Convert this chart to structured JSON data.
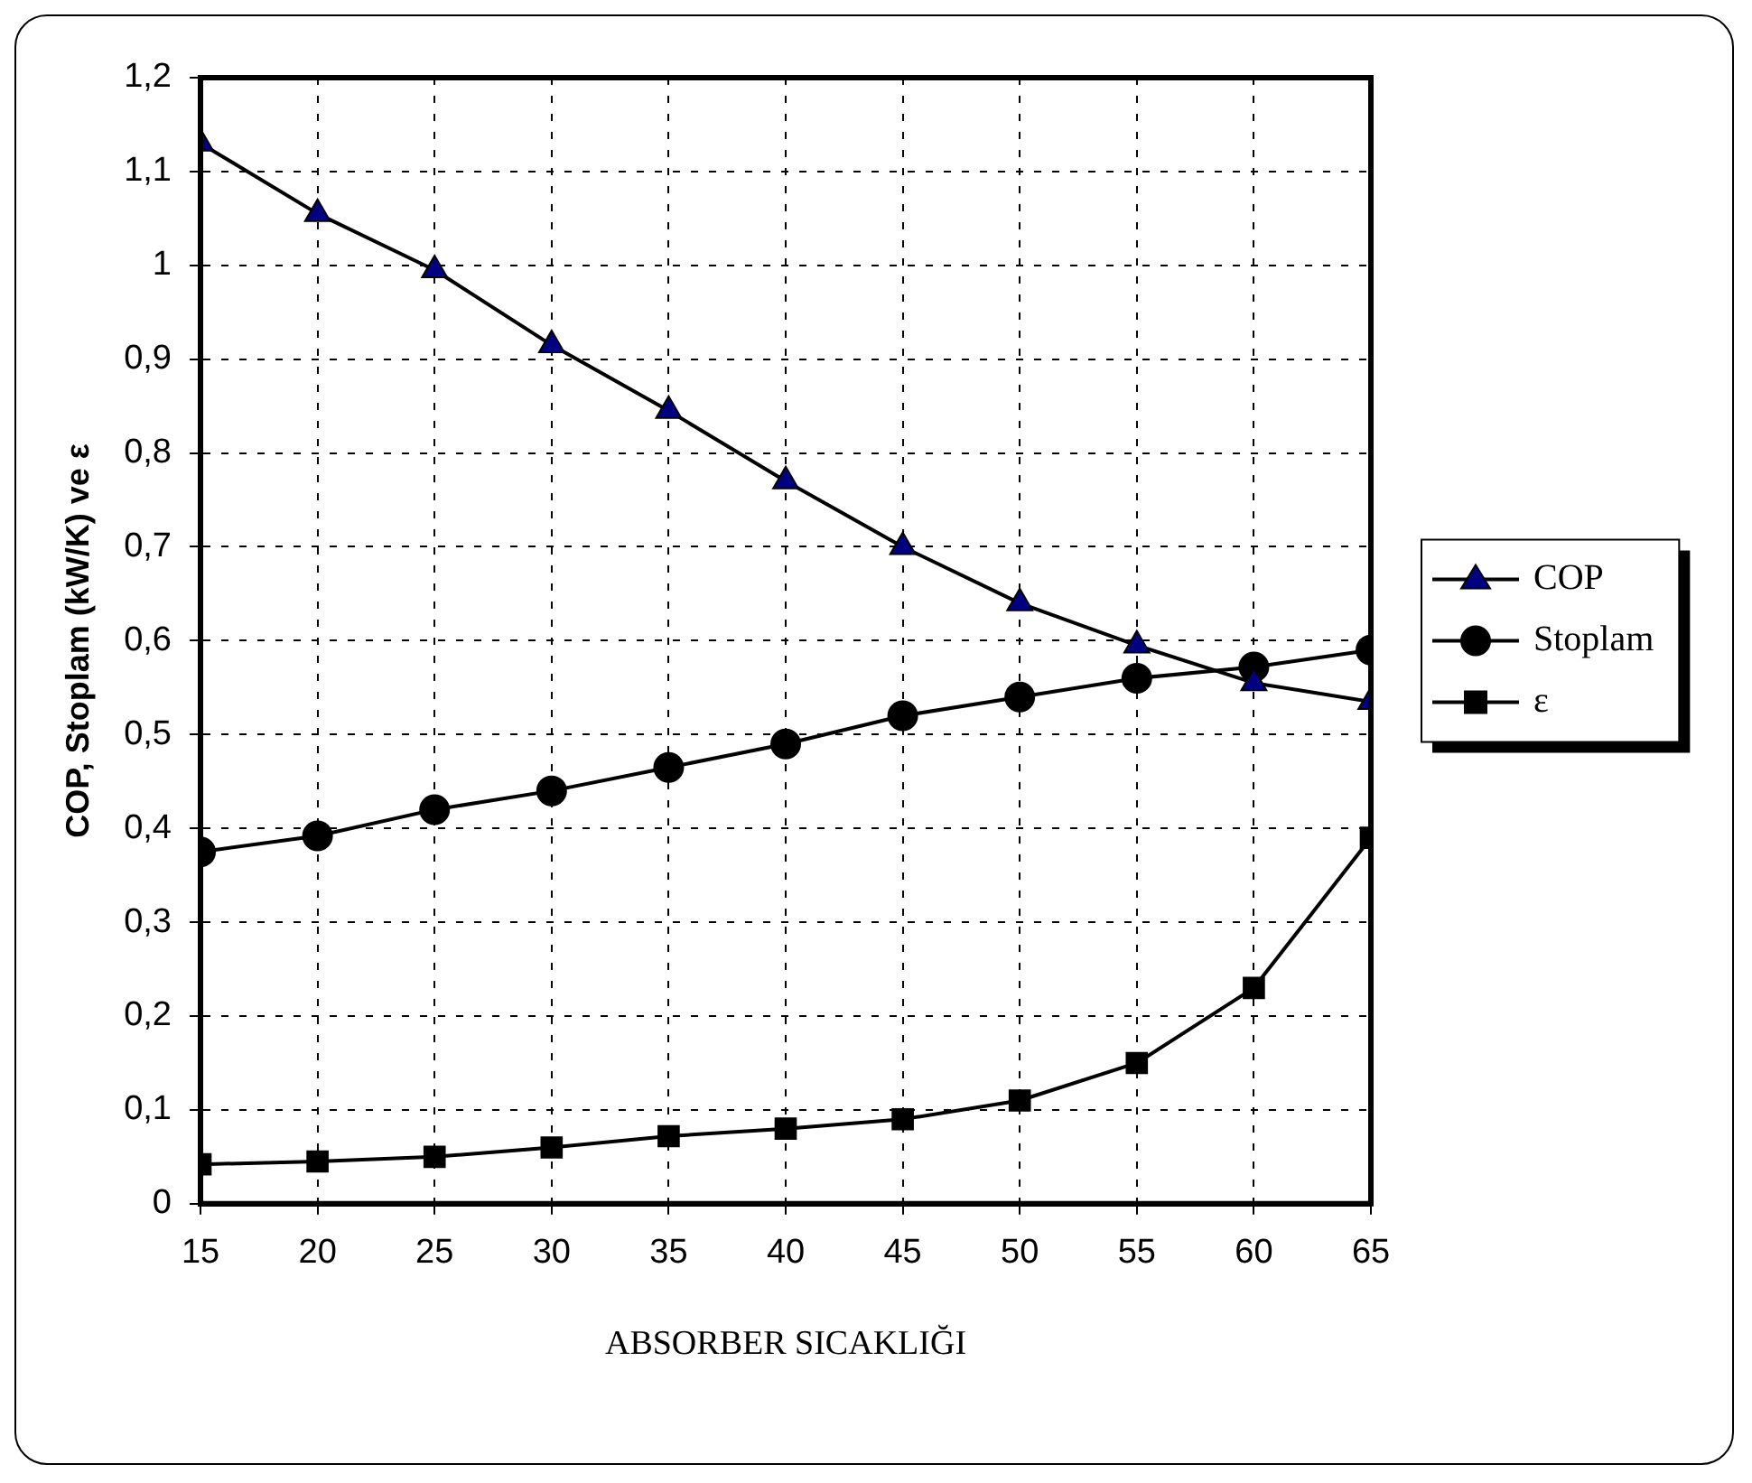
{
  "chart_data": {
    "type": "line",
    "xlabel": "ABSORBER SICAKLIĞI",
    "ylabel": "COP, Stoplam (kW/K) ve ε",
    "x": [
      15,
      20,
      25,
      30,
      35,
      40,
      45,
      50,
      55,
      60,
      65
    ],
    "xlim": [
      15,
      65
    ],
    "xticks": [
      15,
      20,
      25,
      30,
      35,
      40,
      45,
      50,
      55,
      60,
      65
    ],
    "ylim": [
      0,
      1.2
    ],
    "yticks": [
      0,
      {
        "value": 0.1,
        "label": "0,1"
      },
      {
        "value": 0.2,
        "label": "0,2"
      },
      {
        "value": 0.3,
        "label": "0,3"
      },
      {
        "value": 0.4,
        "label": "0,4"
      },
      {
        "value": 0.5,
        "label": "0,5"
      },
      {
        "value": 0.6,
        "label": "0,6"
      },
      {
        "value": 0.7,
        "label": "0,7"
      },
      {
        "value": 0.8,
        "label": "0,8"
      },
      {
        "value": 0.9,
        "label": "0,9"
      },
      1,
      {
        "value": 1.1,
        "label": "1,1"
      },
      {
        "value": 1.2,
        "label": "1,2"
      }
    ],
    "series": [
      {
        "name": "COP",
        "color": "#000080",
        "marker": "triangle",
        "values": [
          1.13,
          1.055,
          0.995,
          0.915,
          0.845,
          0.77,
          0.7,
          0.64,
          0.595,
          0.555,
          0.535
        ]
      },
      {
        "name": "Stoplam",
        "color": "#000000",
        "marker": "circle",
        "values": [
          0.375,
          0.392,
          0.42,
          0.44,
          0.465,
          0.49,
          0.52,
          0.54,
          0.56,
          0.572,
          0.59
        ]
      },
      {
        "name": "ε",
        "color": "#000000",
        "marker": "square",
        "values": [
          0.042,
          0.045,
          0.05,
          0.06,
          0.072,
          0.08,
          0.09,
          0.11,
          0.15,
          0.23,
          0.39
        ]
      }
    ],
    "grid": true,
    "legend": "right",
    "line_style": "solid"
  }
}
